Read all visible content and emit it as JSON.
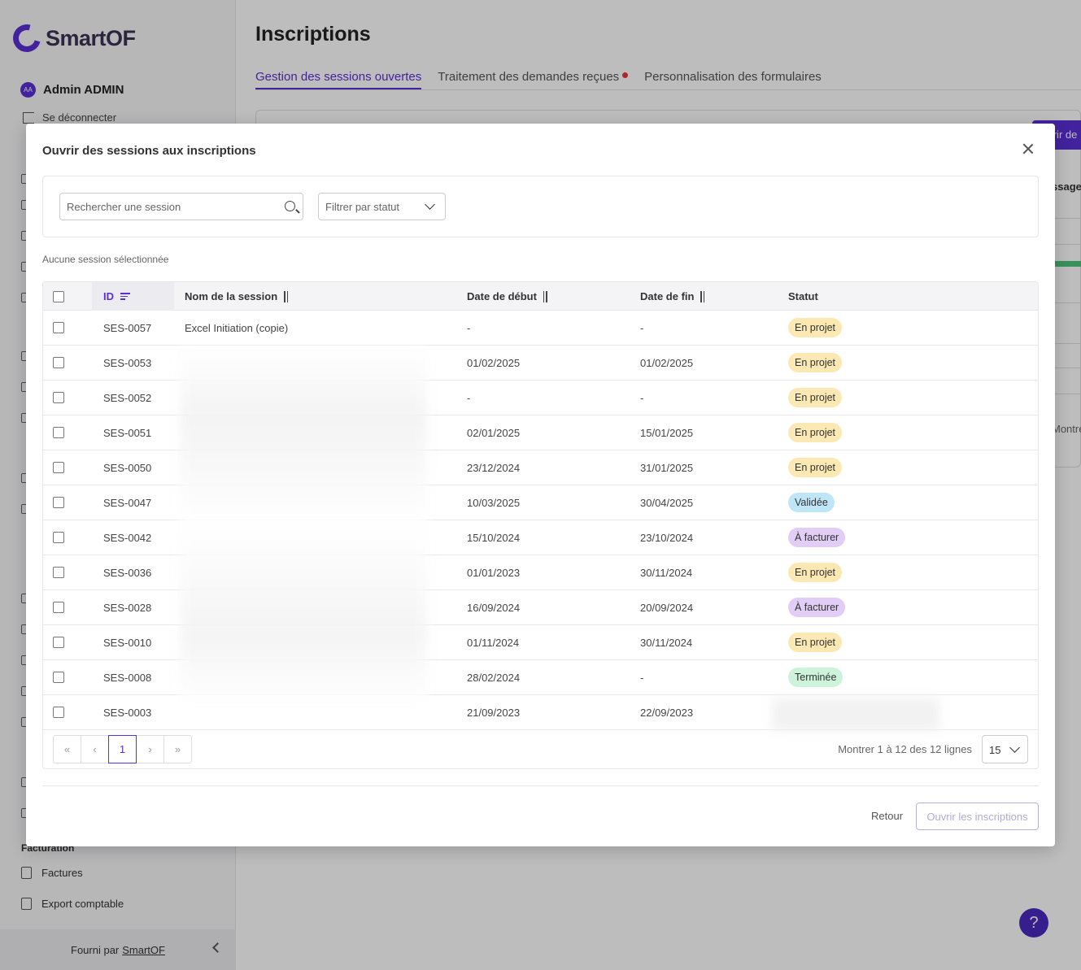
{
  "app": {
    "logo_text": "SmartOF",
    "user_initials": "AA",
    "user_name": "Admin ADMIN",
    "logout_label": "Se déconnecter",
    "sidebar_sections": [
      "Facturation"
    ],
    "sidebar_items": [
      "Factures",
      "Export comptable"
    ],
    "footer_text": "Fourni par",
    "footer_link": "SmartOF",
    "bg_button_fragment": "uvrir de",
    "bg_column_fragment": "ssage",
    "bg_show_fragment": "Montre",
    "help_label": "?"
  },
  "page": {
    "title": "Inscriptions",
    "tabs": [
      {
        "label": "Gestion des sessions ouvertes",
        "active": true
      },
      {
        "label": "Traitement des demandes reçues",
        "active": false
      },
      {
        "label": "Personnalisation des formulaires",
        "active": false
      }
    ]
  },
  "modal": {
    "title": "Ouvrir des sessions aux inscriptions",
    "search_placeholder": "Rechercher une session",
    "status_filter_placeholder": "Filtrer par statut",
    "selection_info": "Aucune session sélectionnée",
    "columns": {
      "id": "ID",
      "name": "Nom de la session",
      "start": "Date de début",
      "end": "Date de fin",
      "status": "Statut"
    },
    "rows": [
      {
        "id": "SES-0057",
        "name": "Excel Initiation (copie)",
        "start": "-",
        "end": "-",
        "status": "En projet",
        "kind": "projet"
      },
      {
        "id": "SES-0053",
        "name": "",
        "start": "01/02/2025",
        "end": "01/02/2025",
        "status": "En projet",
        "kind": "projet"
      },
      {
        "id": "SES-0052",
        "name": "",
        "start": "-",
        "end": "-",
        "status": "En projet",
        "kind": "projet"
      },
      {
        "id": "SES-0051",
        "name": "",
        "start": "02/01/2025",
        "end": "15/01/2025",
        "status": "En projet",
        "kind": "projet"
      },
      {
        "id": "SES-0050",
        "name": "",
        "start": "23/12/2024",
        "end": "31/01/2025",
        "status": "En projet",
        "kind": "projet"
      },
      {
        "id": "SES-0047",
        "name": "",
        "start": "10/03/2025",
        "end": "30/04/2025",
        "status": "Validée",
        "kind": "validee"
      },
      {
        "id": "SES-0042",
        "name": "",
        "start": "15/10/2024",
        "end": "23/10/2024",
        "status": "À facturer",
        "kind": "facturer"
      },
      {
        "id": "SES-0036",
        "name": "",
        "start": "01/01/2023",
        "end": "30/11/2024",
        "status": "En projet",
        "kind": "projet"
      },
      {
        "id": "SES-0028",
        "name": "",
        "start": "16/09/2024",
        "end": "20/09/2024",
        "status": "À facturer",
        "kind": "facturer"
      },
      {
        "id": "SES-0010",
        "name": "",
        "start": "01/11/2024",
        "end": "30/11/2024",
        "status": "En projet",
        "kind": "projet"
      },
      {
        "id": "SES-0008",
        "name": "",
        "start": "28/02/2024",
        "end": "-",
        "status": "Terminée",
        "kind": "terminee"
      },
      {
        "id": "SES-0003",
        "name": "",
        "start": "21/09/2023",
        "end": "22/09/2023",
        "status": "",
        "kind": "none"
      }
    ],
    "pagination": {
      "first": "«",
      "prev": "‹",
      "current": "1",
      "next": "›",
      "last": "»",
      "rows_info": "Montrer 1 à 12 des 12 lignes",
      "page_size": "15"
    },
    "back_label": "Retour",
    "submit_label": "Ouvrir les inscriptions"
  }
}
